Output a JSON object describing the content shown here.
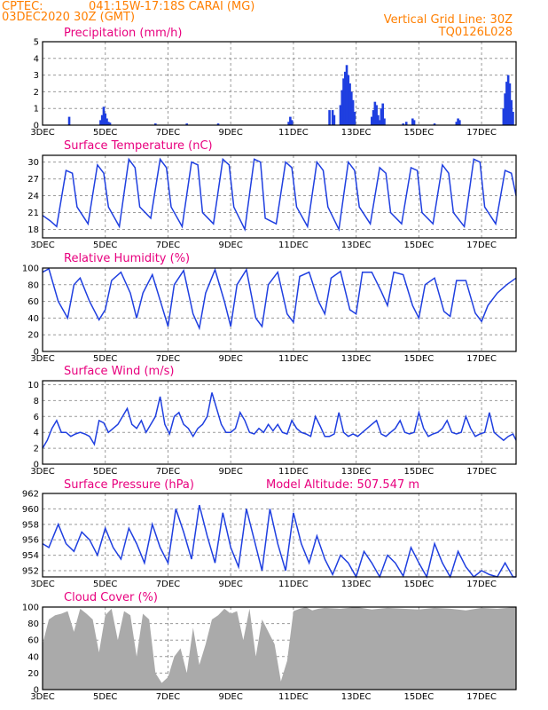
{
  "header": {
    "source": "CPTEC:",
    "location": "041:15W-17:18S  CARAI (MG)",
    "date": "03DEC2020 30Z (GMT)",
    "grid_line": "Vertical Grid Line: 30Z",
    "model": "TQ0126L028"
  },
  "colors": {
    "header": "#ff7f00",
    "title": "#e8007e",
    "series": "#1f3fe0",
    "bars": "#1f3fe0",
    "cloud": "#aaaaaa",
    "arrows": "#000000"
  },
  "x_ticks": [
    "3DEC",
    "5DEC",
    "7DEC",
    "9DEC",
    "11DEC",
    "13DEC",
    "15DEC",
    "17DEC"
  ],
  "chart_data": [
    {
      "type": "bar",
      "title": "Precipitation (mm/h)",
      "ylim": [
        0,
        5
      ],
      "yticks": [
        "0",
        "1",
        "2",
        "3",
        "4",
        "5"
      ],
      "x_range_days": [
        3,
        18.1
      ],
      "points": [
        [
          3.85,
          0.5
        ],
        [
          4.85,
          0.3
        ],
        [
          4.9,
          0.6
        ],
        [
          4.95,
          1.1
        ],
        [
          5.0,
          0.7
        ],
        [
          5.05,
          0.4
        ],
        [
          5.1,
          0.2
        ],
        [
          5.15,
          0.15
        ],
        [
          6.6,
          0.1
        ],
        [
          7.6,
          0.1
        ],
        [
          8.6,
          0.1
        ],
        [
          10.85,
          0.2
        ],
        [
          10.9,
          0.5
        ],
        [
          10.95,
          0.3
        ],
        [
          12.15,
          0.9
        ],
        [
          12.25,
          0.9
        ],
        [
          12.3,
          0.6
        ],
        [
          12.5,
          1.2
        ],
        [
          12.55,
          2.1
        ],
        [
          12.6,
          2.8
        ],
        [
          12.65,
          3.2
        ],
        [
          12.7,
          3.6
        ],
        [
          12.75,
          3.0
        ],
        [
          12.8,
          2.5
        ],
        [
          12.85,
          2.0
        ],
        [
          12.9,
          1.5
        ],
        [
          12.95,
          0.8
        ],
        [
          13.5,
          0.5
        ],
        [
          13.55,
          0.9
        ],
        [
          13.6,
          1.4
        ],
        [
          13.65,
          1.2
        ],
        [
          13.7,
          0.6
        ],
        [
          13.75,
          0.3
        ],
        [
          13.8,
          1.0
        ],
        [
          13.85,
          1.3
        ],
        [
          13.9,
          0.4
        ],
        [
          14.5,
          0.1
        ],
        [
          14.6,
          0.2
        ],
        [
          14.8,
          0.4
        ],
        [
          14.85,
          0.3
        ],
        [
          15.5,
          0.1
        ],
        [
          16.2,
          0.2
        ],
        [
          16.25,
          0.4
        ],
        [
          16.3,
          0.3
        ],
        [
          17.7,
          1.0
        ],
        [
          17.75,
          1.9
        ],
        [
          17.8,
          2.6
        ],
        [
          17.85,
          3.0
        ],
        [
          17.9,
          2.5
        ],
        [
          17.95,
          1.5
        ],
        [
          18.0,
          0.8
        ]
      ]
    },
    {
      "type": "line",
      "title": "Surface Temperature (nC)",
      "ylim": [
        16.5,
        31.2
      ],
      "yticks": [
        "18",
        "21",
        "24",
        "27",
        "30"
      ],
      "x": [
        3.0,
        3.25,
        3.45,
        3.75,
        3.95,
        4.1,
        4.45,
        4.75,
        4.95,
        5.1,
        5.45,
        5.75,
        5.95,
        6.1,
        6.45,
        6.75,
        6.95,
        7.1,
        7.45,
        7.75,
        7.95,
        8.1,
        8.45,
        8.75,
        8.95,
        9.1,
        9.45,
        9.75,
        9.95,
        10.1,
        10.45,
        10.75,
        10.95,
        11.1,
        11.45,
        11.75,
        11.95,
        12.1,
        12.45,
        12.75,
        12.95,
        13.1,
        13.45,
        13.75,
        13.95,
        14.1,
        14.45,
        14.75,
        14.95,
        15.1,
        15.45,
        15.75,
        15.95,
        16.1,
        16.45,
        16.75,
        16.95,
        17.1,
        17.45,
        17.75,
        17.95,
        18.1
      ],
      "y": [
        20.5,
        19.5,
        18.5,
        28.5,
        28.0,
        22.0,
        19.0,
        29.5,
        28.0,
        22.0,
        18.5,
        30.5,
        29.0,
        22.0,
        20.0,
        30.5,
        29.0,
        22.0,
        18.5,
        30.0,
        29.5,
        21.0,
        19.0,
        30.5,
        29.5,
        22.0,
        18.0,
        30.5,
        30.0,
        20.0,
        19.0,
        30.0,
        29.0,
        22.0,
        18.5,
        30.0,
        28.5,
        22.0,
        18.0,
        30.0,
        28.5,
        22.0,
        19.0,
        29.0,
        28.0,
        21.0,
        19.0,
        29.0,
        28.5,
        21.0,
        19.0,
        29.5,
        28.0,
        21.0,
        18.5,
        30.5,
        30.0,
        22.0,
        19.0,
        28.5,
        28.0,
        24.0
      ]
    },
    {
      "type": "line",
      "title": "Relative Humidity (%)",
      "ylim": [
        0,
        100
      ],
      "yticks": [
        "0",
        "20",
        "40",
        "60",
        "80",
        "100"
      ],
      "x": [
        3.0,
        3.2,
        3.5,
        3.8,
        4.0,
        4.2,
        4.5,
        4.8,
        5.0,
        5.2,
        5.5,
        5.8,
        6.0,
        6.2,
        6.5,
        6.8,
        7.0,
        7.2,
        7.5,
        7.8,
        8.0,
        8.2,
        8.5,
        8.8,
        9.0,
        9.2,
        9.5,
        9.8,
        10.0,
        10.2,
        10.5,
        10.8,
        11.0,
        11.2,
        11.5,
        11.8,
        12.0,
        12.2,
        12.5,
        12.8,
        13.0,
        13.2,
        13.5,
        13.8,
        14.0,
        14.2,
        14.5,
        14.8,
        15.0,
        15.2,
        15.5,
        15.8,
        16.0,
        16.2,
        16.5,
        16.8,
        17.0,
        17.2,
        17.5,
        17.8,
        18.1
      ],
      "y": [
        95,
        99,
        60,
        40,
        80,
        88,
        60,
        38,
        50,
        85,
        95,
        70,
        40,
        70,
        92,
        55,
        30,
        80,
        97,
        45,
        28,
        70,
        98,
        60,
        30,
        80,
        98,
        40,
        30,
        80,
        95,
        45,
        35,
        90,
        95,
        60,
        45,
        88,
        96,
        50,
        45,
        95,
        95,
        72,
        55,
        95,
        92,
        55,
        40,
        80,
        88,
        48,
        42,
        85,
        85,
        46,
        36,
        55,
        70,
        80,
        88
      ]
    },
    {
      "type": "line",
      "title": "Surface Wind (m/s)",
      "ylim": [
        0,
        10.5
      ],
      "yticks": [
        "0",
        "2",
        "4",
        "6",
        "8",
        "10"
      ],
      "x": [
        3.0,
        3.15,
        3.3,
        3.45,
        3.6,
        3.75,
        3.9,
        4.05,
        4.2,
        4.35,
        4.5,
        4.65,
        4.8,
        4.95,
        5.1,
        5.25,
        5.4,
        5.55,
        5.7,
        5.85,
        6.0,
        6.15,
        6.3,
        6.45,
        6.6,
        6.75,
        6.9,
        7.05,
        7.2,
        7.35,
        7.5,
        7.65,
        7.8,
        7.95,
        8.1,
        8.25,
        8.4,
        8.55,
        8.7,
        8.85,
        9.0,
        9.15,
        9.3,
        9.45,
        9.6,
        9.75,
        9.9,
        10.05,
        10.2,
        10.35,
        10.5,
        10.65,
        10.8,
        10.95,
        11.1,
        11.25,
        11.4,
        11.55,
        11.7,
        11.85,
        12.0,
        12.15,
        12.3,
        12.45,
        12.6,
        12.75,
        12.9,
        13.05,
        13.2,
        13.35,
        13.5,
        13.65,
        13.8,
        13.95,
        14.1,
        14.25,
        14.4,
        14.55,
        14.7,
        14.85,
        15.0,
        15.15,
        15.3,
        15.45,
        15.6,
        15.75,
        15.9,
        16.05,
        16.2,
        16.35,
        16.5,
        16.65,
        16.8,
        16.95,
        17.1,
        17.25,
        17.4,
        17.55,
        17.7,
        17.85,
        18.0,
        18.1
      ],
      "y": [
        2.0,
        3.0,
        4.5,
        5.5,
        4.0,
        4.0,
        3.5,
        3.8,
        4.0,
        3.8,
        3.5,
        2.5,
        5.5,
        5.2,
        4.0,
        4.5,
        5.0,
        6.0,
        7.0,
        5.0,
        4.5,
        5.5,
        4.0,
        5.0,
        6.0,
        8.5,
        5.0,
        3.8,
        6.0,
        6.5,
        5.0,
        4.5,
        3.5,
        4.5,
        5.0,
        6.0,
        9.0,
        7.0,
        5.0,
        4.0,
        4.0,
        4.5,
        6.5,
        5.5,
        4.0,
        3.8,
        4.5,
        4.0,
        5.0,
        4.2,
        5.0,
        4.0,
        3.8,
        5.5,
        4.5,
        4.0,
        3.8,
        3.5,
        6.0,
        4.8,
        3.5,
        3.5,
        3.8,
        6.5,
        4.0,
        3.5,
        3.8,
        3.5,
        4.0,
        4.5,
        5.0,
        5.5,
        3.8,
        3.5,
        4.0,
        4.5,
        5.5,
        4.0,
        3.8,
        4.0,
        6.5,
        4.5,
        3.5,
        3.8,
        4.0,
        4.5,
        5.5,
        4.0,
        3.8,
        4.0,
        6.0,
        4.5,
        3.5,
        3.8,
        4.0,
        6.5,
        4.0,
        3.5,
        3.0,
        3.5,
        3.8,
        3.0
      ]
    },
    {
      "type": "line",
      "title": "Surface Pressure (hPa)",
      "annotation": "Model Altitude: 507.547 m",
      "ylim": [
        951.2,
        962
      ],
      "yticks": [
        "952",
        "954",
        "956",
        "958",
        "960",
        "962"
      ],
      "x": [
        3.0,
        3.2,
        3.5,
        3.75,
        4.0,
        4.25,
        4.5,
        4.75,
        5.0,
        5.25,
        5.5,
        5.75,
        6.0,
        6.25,
        6.5,
        6.75,
        7.0,
        7.25,
        7.5,
        7.75,
        8.0,
        8.25,
        8.5,
        8.75,
        9.0,
        9.25,
        9.5,
        9.75,
        10.0,
        10.25,
        10.5,
        10.75,
        11.0,
        11.25,
        11.5,
        11.75,
        12.0,
        12.25,
        12.5,
        12.75,
        13.0,
        13.25,
        13.5,
        13.75,
        14.0,
        14.25,
        14.5,
        14.75,
        15.0,
        15.25,
        15.5,
        15.75,
        16.0,
        16.25,
        16.5,
        16.75,
        17.0,
        17.25,
        17.5,
        17.75,
        18.0,
        18.1
      ],
      "y": [
        955.5,
        955.0,
        958.0,
        955.5,
        954.5,
        957.0,
        956.0,
        954.0,
        957.5,
        955.0,
        953.5,
        957.5,
        955.5,
        953.0,
        958.0,
        955.0,
        953.0,
        960.0,
        957.0,
        953.5,
        960.5,
        956.5,
        953.0,
        959.5,
        955.0,
        952.5,
        960.0,
        956.0,
        952.0,
        960.0,
        955.5,
        952.0,
        959.5,
        955.5,
        953.0,
        956.5,
        953.5,
        951.5,
        954.0,
        953.0,
        951.0,
        954.5,
        953.0,
        951.2,
        954.0,
        953.0,
        951.3,
        955.0,
        953.0,
        951.0,
        955.5,
        953.0,
        951.2,
        954.5,
        952.5,
        950.8,
        952.0,
        951.5,
        950.8,
        953.0,
        951.0,
        950.5
      ]
    },
    {
      "type": "area",
      "title": "Cloud Cover (%)",
      "ylim": [
        0,
        100
      ],
      "yticks": [
        "0",
        "20",
        "40",
        "60",
        "80",
        "100"
      ],
      "x": [
        3.0,
        3.2,
        3.4,
        3.6,
        3.8,
        4.0,
        4.2,
        4.4,
        4.6,
        4.8,
        5.0,
        5.2,
        5.4,
        5.6,
        5.8,
        6.0,
        6.2,
        6.4,
        6.6,
        6.8,
        7.0,
        7.2,
        7.4,
        7.6,
        7.8,
        8.0,
        8.2,
        8.4,
        8.6,
        8.8,
        9.0,
        9.2,
        9.4,
        9.6,
        9.8,
        10.0,
        10.2,
        10.4,
        10.6,
        10.8,
        11.0,
        11.2,
        11.4,
        11.6,
        11.8,
        12.0,
        12.5,
        13.0,
        13.5,
        14.0,
        14.5,
        15.0,
        15.5,
        16.0,
        16.5,
        17.0,
        17.5,
        18.1
      ],
      "y": [
        55,
        85,
        90,
        92,
        95,
        70,
        98,
        92,
        85,
        45,
        90,
        98,
        60,
        95,
        90,
        40,
        92,
        85,
        20,
        8,
        15,
        40,
        50,
        20,
        75,
        30,
        55,
        85,
        90,
        98,
        92,
        95,
        60,
        98,
        40,
        85,
        70,
        55,
        10,
        35,
        95,
        98,
        100,
        96,
        98,
        99,
        98,
        100,
        97,
        99,
        98,
        97,
        99,
        98,
        96,
        99,
        98,
        100
      ]
    }
  ]
}
